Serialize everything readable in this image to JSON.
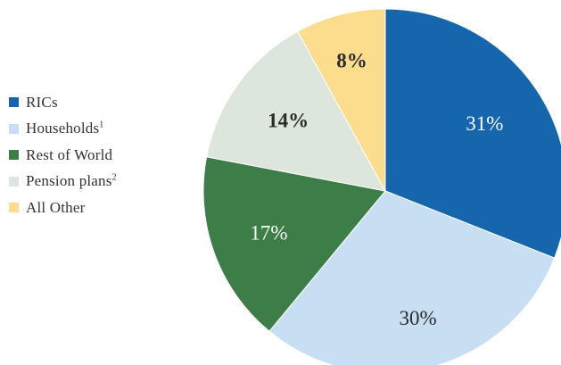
{
  "chart_data": {
    "type": "pie",
    "title": "",
    "legend_position": "left",
    "start_angle_deg": 0,
    "direction": "clockwise",
    "slices": [
      {
        "name": "RICs",
        "footnote": "",
        "value": 31,
        "label": "31%",
        "color": "#1566ad",
        "label_color": "#ffffff",
        "label_weight": "normal"
      },
      {
        "name": "Households",
        "footnote": "1",
        "value": 30,
        "label": "30%",
        "color": "#c8def3",
        "label_color": "#2b2b2b",
        "label_weight": "normal"
      },
      {
        "name": "Rest of World",
        "footnote": "",
        "value": 17,
        "label": "17%",
        "color": "#3d7d48",
        "label_color": "#ffffff",
        "label_weight": "normal"
      },
      {
        "name": "Pension plans",
        "footnote": "2",
        "value": 14,
        "label": "14%",
        "color": "#dde6dc",
        "label_color": "#2b2b2b",
        "label_weight": "bold"
      },
      {
        "name": "All Other",
        "footnote": "",
        "value": 8,
        "label": "8%",
        "color": "#fcdc8d",
        "label_color": "#2b2b2b",
        "label_weight": "bold"
      }
    ]
  }
}
